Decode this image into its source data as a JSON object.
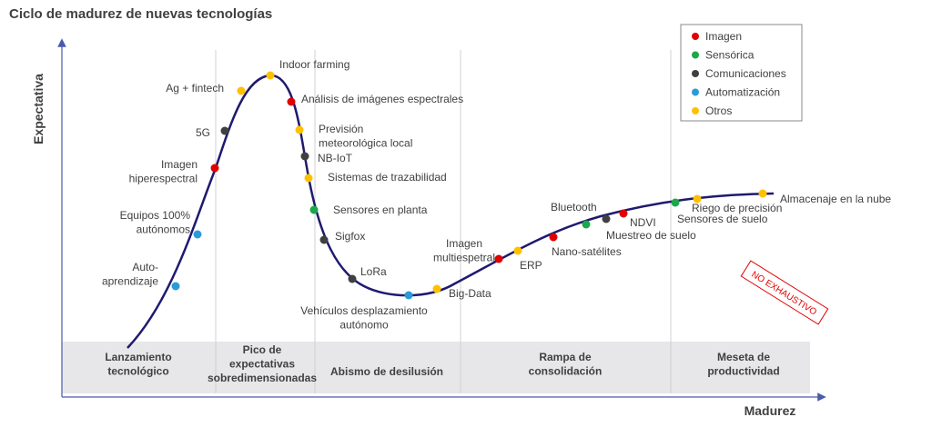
{
  "title": "Ciclo de madurez de nuevas tecnologías",
  "axes": {
    "y_label": "Expectativa",
    "x_label": "Madurez"
  },
  "legend": [
    {
      "name": "Imagen",
      "color": "#e00000"
    },
    {
      "name": "Sensórica",
      "color": "#1aa84a"
    },
    {
      "name": "Comunicaciones",
      "color": "#404040"
    },
    {
      "name": "Automatización",
      "color": "#2b9bd8"
    },
    {
      "name": "Otros",
      "color": "#ffc000"
    }
  ],
  "points": [
    {
      "label": [
        "Indoor farming"
      ],
      "category": 4
    },
    {
      "label": [
        "Ag + fintech"
      ],
      "category": 4
    },
    {
      "label": [
        "Análisis de imágenes espectrales"
      ],
      "category": 0
    },
    {
      "label": [
        "5G"
      ],
      "category": 2
    },
    {
      "label": [
        "Previsión",
        "meteorológica local"
      ],
      "category": 4
    },
    {
      "label": [
        "NB-IoT"
      ],
      "category": 2
    },
    {
      "label": [
        "Imagen",
        "hiperespectral"
      ],
      "category": 0
    },
    {
      "label": [
        "Sistemas de trazabilidad"
      ],
      "category": 4
    },
    {
      "label": [
        "Sensores en planta"
      ],
      "category": 1
    },
    {
      "label": [
        "Equipos 100%",
        "autónomos"
      ],
      "category": 3
    },
    {
      "label": [
        "Sigfox"
      ],
      "category": 2
    },
    {
      "label": [
        "Auto-",
        "aprendizaje"
      ],
      "category": 3
    },
    {
      "label": [
        "LoRa"
      ],
      "category": 2
    },
    {
      "label": [
        "Vehículos desplazamiento",
        "autónomo"
      ],
      "category": 3
    },
    {
      "label": [
        "Big-Data"
      ],
      "category": 4
    },
    {
      "label": [
        "Imagen",
        "multiespetral"
      ],
      "category": 0
    },
    {
      "label": [
        "ERP"
      ],
      "category": 4
    },
    {
      "label": [
        "Nano-satélites"
      ],
      "category": 0
    },
    {
      "label": [
        "Bluetooth"
      ],
      "category": 1
    },
    {
      "label": [
        "Muestreo de suelo"
      ],
      "category": 2
    },
    {
      "label": [
        "NDVI"
      ],
      "category": 0
    },
    {
      "label": [
        "Riego de precisión"
      ],
      "category": 1
    },
    {
      "label": [
        "Sensores de suelo"
      ],
      "category": 4
    },
    {
      "label": [
        "Almacenaje en la nube"
      ],
      "category": 4
    }
  ],
  "phases": [
    [
      "Lanzamiento",
      "tecnológico"
    ],
    [
      "Pico de",
      "expectativas",
      "sobredimensionadas"
    ],
    [
      "Abismo de desilusión"
    ],
    [
      "Rampa de",
      "consolidación"
    ],
    [
      "Meseta de",
      "productividad"
    ]
  ],
  "stamp": "NO EXHAUSTIVO"
}
